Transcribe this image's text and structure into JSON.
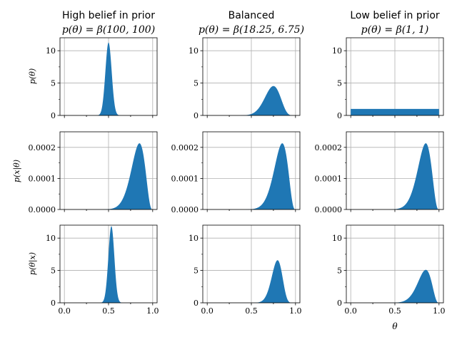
{
  "colors": {
    "fill": "#1f77b4",
    "grid": "#b0b0b0",
    "axis": "#000000",
    "background": "#ffffff"
  },
  "columns": [
    {
      "title": "High belief in prior",
      "subtitle": "p(θ) = β(100, 100)"
    },
    {
      "title": "Balanced",
      "subtitle": "p(θ) = β(18.25, 6.75)"
    },
    {
      "title": "Low belief in prior",
      "subtitle": "p(θ) = β(1, 1)"
    }
  ],
  "row_labels": [
    "p(θ)",
    "p(x|θ)",
    "p(θ|x)"
  ],
  "x_axis_label": "θ",
  "chart_data": [
    {
      "type": "area",
      "row": 0,
      "col": 0,
      "distribution": "beta",
      "a": 100,
      "b": 100,
      "xlim": [
        -0.05,
        1.05
      ],
      "ylim": [
        0,
        12
      ],
      "xticks": [
        0,
        0.5,
        1
      ],
      "yticks": [
        0,
        5,
        10
      ],
      "ytick_labels": [
        "0",
        "5",
        "10"
      ],
      "grid": true
    },
    {
      "type": "area",
      "row": 0,
      "col": 1,
      "distribution": "beta",
      "a": 18.25,
      "b": 6.75,
      "xlim": [
        -0.05,
        1.05
      ],
      "ylim": [
        0,
        12
      ],
      "xticks": [
        0,
        0.5,
        1
      ],
      "yticks": [
        0,
        5,
        10
      ],
      "ytick_labels": [
        "0",
        "5",
        "10"
      ],
      "grid": true
    },
    {
      "type": "area",
      "row": 0,
      "col": 2,
      "distribution": "beta",
      "a": 1,
      "b": 1,
      "xlim": [
        -0.05,
        1.05
      ],
      "ylim": [
        0,
        12
      ],
      "xticks": [
        0,
        0.5,
        1
      ],
      "yticks": [
        0,
        5,
        10
      ],
      "ytick_labels": [
        "0",
        "5",
        "10"
      ],
      "grid": true
    },
    {
      "type": "area",
      "row": 1,
      "col": 0,
      "distribution": "likelihood",
      "successes": 17,
      "failures": 3,
      "xlim": [
        -0.05,
        1.05
      ],
      "ylim": [
        0,
        0.00025
      ],
      "xticks": [
        0,
        0.5,
        1
      ],
      "yticks": [
        0,
        0.0001,
        0.0002
      ],
      "ytick_labels": [
        "0.0000",
        "0.0001",
        "0.0002"
      ],
      "grid": true
    },
    {
      "type": "area",
      "row": 1,
      "col": 1,
      "distribution": "likelihood",
      "successes": 17,
      "failures": 3,
      "xlim": [
        -0.05,
        1.05
      ],
      "ylim": [
        0,
        0.00025
      ],
      "xticks": [
        0,
        0.5,
        1
      ],
      "yticks": [
        0,
        0.0001,
        0.0002
      ],
      "ytick_labels": [
        "0.0000",
        "0.0001",
        "0.0002"
      ],
      "grid": true
    },
    {
      "type": "area",
      "row": 1,
      "col": 2,
      "distribution": "likelihood",
      "successes": 17,
      "failures": 3,
      "xlim": [
        -0.05,
        1.05
      ],
      "ylim": [
        0,
        0.00025
      ],
      "xticks": [
        0,
        0.5,
        1
      ],
      "yticks": [
        0,
        0.0001,
        0.0002
      ],
      "ytick_labels": [
        "0.0000",
        "0.0001",
        "0.0002"
      ],
      "grid": true
    },
    {
      "type": "area",
      "row": 2,
      "col": 0,
      "distribution": "beta",
      "a": 117,
      "b": 103,
      "xlim": [
        -0.05,
        1.05
      ],
      "ylim": [
        0,
        12
      ],
      "xticks": [
        0,
        0.5,
        1
      ],
      "xtick_labels": [
        "0.0",
        "0.5",
        "1.0"
      ],
      "yticks": [
        0,
        5,
        10
      ],
      "ytick_labels": [
        "0",
        "5",
        "10"
      ],
      "grid": true
    },
    {
      "type": "area",
      "row": 2,
      "col": 1,
      "distribution": "beta",
      "a": 35.25,
      "b": 9.75,
      "xlim": [
        -0.05,
        1.05
      ],
      "ylim": [
        0,
        12
      ],
      "xticks": [
        0,
        0.5,
        1
      ],
      "xtick_labels": [
        "0.0",
        "0.5",
        "1.0"
      ],
      "yticks": [
        0,
        5,
        10
      ],
      "ytick_labels": [
        "0",
        "5",
        "10"
      ],
      "grid": true
    },
    {
      "type": "area",
      "row": 2,
      "col": 2,
      "distribution": "beta",
      "a": 18,
      "b": 4,
      "xlim": [
        -0.05,
        1.05
      ],
      "ylim": [
        0,
        12
      ],
      "xticks": [
        0,
        0.5,
        1
      ],
      "xtick_labels": [
        "0.0",
        "0.5",
        "1.0"
      ],
      "yticks": [
        0,
        5,
        10
      ],
      "ytick_labels": [
        "0",
        "5",
        "10"
      ],
      "grid": true
    }
  ]
}
